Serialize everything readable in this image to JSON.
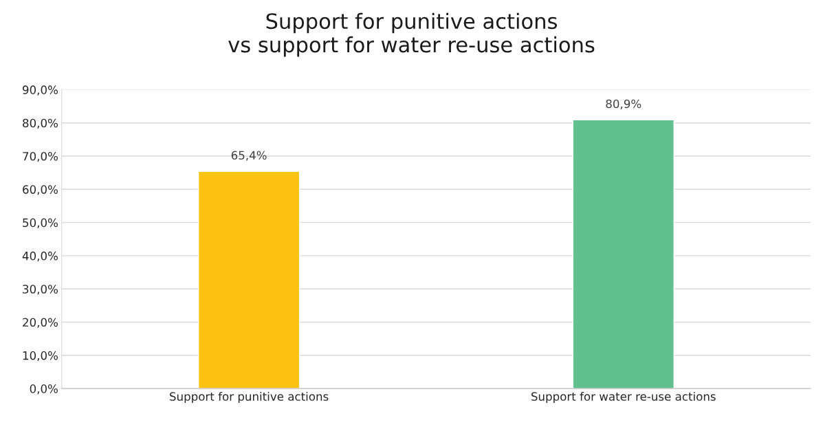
{
  "chart_data": {
    "type": "bar",
    "title": "Support for punitive actions\nvs support for water re-use actions",
    "categories": [
      "Support for punitive actions",
      "Support for water re-use actions"
    ],
    "values": [
      65.4,
      80.9
    ],
    "colors": [
      "#fcc314",
      "#62c08f"
    ],
    "value_labels": [
      "65,4%",
      "80,9%"
    ],
    "ylim": [
      0,
      90
    ],
    "yticks": [
      {
        "value": 0,
        "label": "0,0%"
      },
      {
        "value": 10,
        "label": "10,0%"
      },
      {
        "value": 20,
        "label": "20,0%"
      },
      {
        "value": 30,
        "label": "30,0%"
      },
      {
        "value": 40,
        "label": "40,0%"
      },
      {
        "value": 50,
        "label": "50,0%"
      },
      {
        "value": 60,
        "label": "60,0%"
      },
      {
        "value": 70,
        "label": "70,0%"
      },
      {
        "value": 80,
        "label": "80,0%"
      },
      {
        "value": 90,
        "label": "90,0%"
      }
    ],
    "grid": "y"
  }
}
